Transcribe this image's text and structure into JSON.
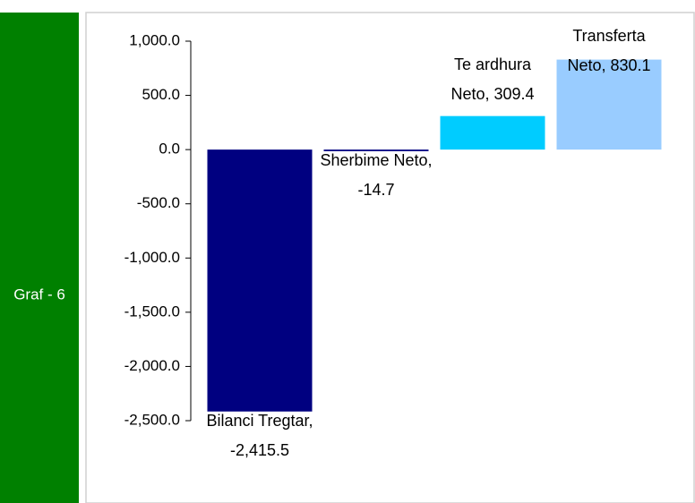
{
  "chart_data": {
    "type": "bar",
    "side_label": "Graf - 6",
    "values": [
      -2415.5,
      -14.7,
      309.4,
      830.1
    ],
    "value_labels": [
      "Bilanci Tregtar, -2,415.5",
      "Sherbime Neto, -14.7",
      "Te ardhura Neto, 309.4",
      "Transferta Neto, 830.1"
    ],
    "colors": [
      "#000080",
      "#000080",
      "#00ccff",
      "#99ccff"
    ],
    "ylim": [
      -2500,
      1000
    ],
    "yticks": [
      {
        "value": -2500,
        "label": "-2,500.0"
      },
      {
        "value": -2000,
        "label": "-2,000.0"
      },
      {
        "value": -1500,
        "label": "-1,500.0"
      },
      {
        "value": -1000,
        "label": "-1,000.0"
      },
      {
        "value": -500,
        "label": "-500.0"
      },
      {
        "value": 0,
        "label": "0.0"
      },
      {
        "value": 500,
        "label": "500.0"
      },
      {
        "value": 1000,
        "label": "1,000.0"
      }
    ],
    "grid": false
  }
}
